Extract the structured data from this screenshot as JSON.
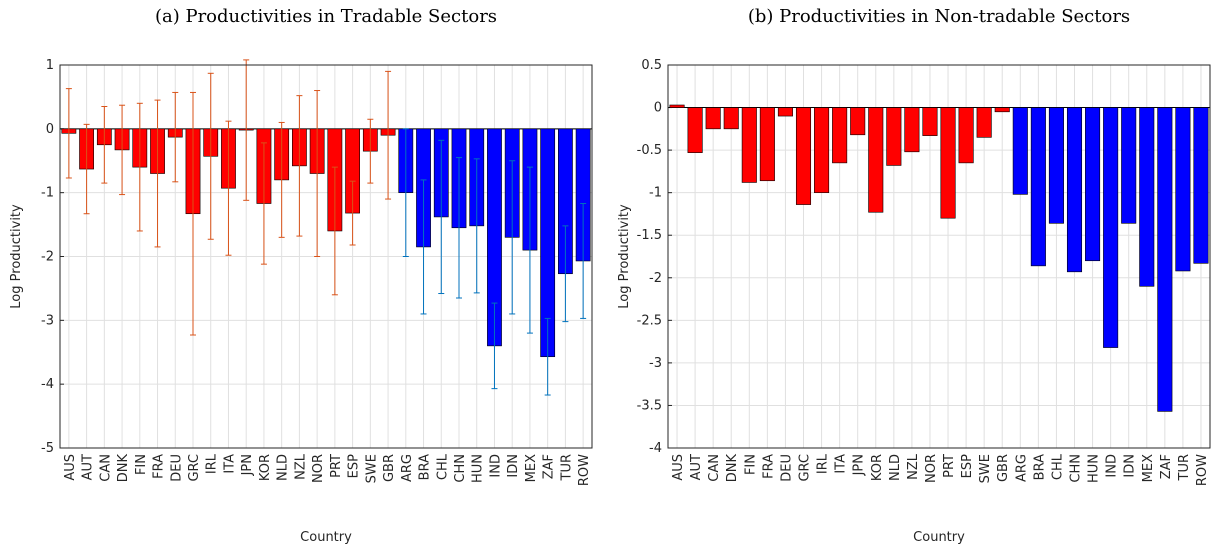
{
  "chart_data": [
    {
      "type": "bar",
      "title": "(a) Productivities in Tradable Sectors",
      "xlabel": "Country",
      "ylabel": "Log Productivity",
      "categories": [
        "AUS",
        "AUT",
        "CAN",
        "DNK",
        "FIN",
        "FRA",
        "DEU",
        "GRC",
        "IRL",
        "ITA",
        "JPN",
        "KOR",
        "NLD",
        "NZL",
        "NOR",
        "PRT",
        "ESP",
        "SWE",
        "GBR",
        "ARG",
        "BRA",
        "CHL",
        "CHN",
        "HUN",
        "IND",
        "IDN",
        "MEX",
        "ZAF",
        "TUR",
        "ROW"
      ],
      "values": [
        -0.07,
        -0.63,
        -0.25,
        -0.33,
        -0.6,
        -0.7,
        -0.13,
        -1.33,
        -0.43,
        -0.93,
        -0.02,
        -1.17,
        -0.8,
        -0.58,
        -0.7,
        -1.6,
        -1.32,
        -0.35,
        -0.1,
        -1.0,
        -1.85,
        -1.38,
        -1.55,
        -1.52,
        -3.4,
        -1.7,
        -1.9,
        -3.57,
        -2.27,
        -2.07
      ],
      "errors": [
        0.7,
        0.7,
        0.6,
        0.7,
        1.0,
        1.15,
        0.7,
        1.9,
        1.3,
        1.05,
        1.1,
        0.95,
        0.9,
        1.1,
        1.3,
        1.0,
        0.5,
        0.5,
        1.0,
        1.0,
        1.05,
        1.2,
        1.1,
        1.05,
        0.67,
        1.2,
        1.3,
        0.6,
        0.75,
        0.9
      ],
      "colors": [
        "#ff0000",
        "#ff0000",
        "#ff0000",
        "#ff0000",
        "#ff0000",
        "#ff0000",
        "#ff0000",
        "#ff0000",
        "#ff0000",
        "#ff0000",
        "#ff0000",
        "#ff0000",
        "#ff0000",
        "#ff0000",
        "#ff0000",
        "#ff0000",
        "#ff0000",
        "#ff0000",
        "#ff0000",
        "#0000ff",
        "#0000ff",
        "#0000ff",
        "#0000ff",
        "#0000ff",
        "#0000ff",
        "#0000ff",
        "#0000ff",
        "#0000ff",
        "#0000ff",
        "#0000ff"
      ],
      "error_colors": [
        "#d95319",
        "#d95319",
        "#d95319",
        "#d95319",
        "#d95319",
        "#d95319",
        "#d95319",
        "#d95319",
        "#d95319",
        "#d95319",
        "#d95319",
        "#d95319",
        "#d95319",
        "#d95319",
        "#d95319",
        "#d95319",
        "#d95319",
        "#d95319",
        "#d95319",
        "#0072bd",
        "#0072bd",
        "#0072bd",
        "#0072bd",
        "#0072bd",
        "#0072bd",
        "#0072bd",
        "#0072bd",
        "#0072bd",
        "#0072bd",
        "#0072bd"
      ],
      "ylim": [
        -5,
        1
      ],
      "yticks": [
        -5,
        -4,
        -3,
        -2,
        -1,
        0,
        1
      ],
      "grid": true
    },
    {
      "type": "bar",
      "title": "(b) Productivities in Non-tradable Sectors",
      "xlabel": "Country",
      "ylabel": "Log Productivity",
      "categories": [
        "AUS",
        "AUT",
        "CAN",
        "DNK",
        "FIN",
        "FRA",
        "DEU",
        "GRC",
        "IRL",
        "ITA",
        "JPN",
        "KOR",
        "NLD",
        "NZL",
        "NOR",
        "PRT",
        "ESP",
        "SWE",
        "GBR",
        "ARG",
        "BRA",
        "CHL",
        "CHN",
        "HUN",
        "IND",
        "IDN",
        "MEX",
        "ZAF",
        "TUR",
        "ROW"
      ],
      "values": [
        0.03,
        -0.53,
        -0.25,
        -0.25,
        -0.88,
        -0.86,
        -0.1,
        -1.14,
        -1.0,
        -0.65,
        -0.32,
        -1.23,
        -0.68,
        -0.52,
        -0.33,
        -1.3,
        -0.65,
        -0.35,
        -0.05,
        -1.02,
        -1.86,
        -1.36,
        -1.93,
        -1.8,
        -2.82,
        -1.36,
        -2.1,
        -3.57,
        -1.92,
        -1.83
      ],
      "colors": [
        "#ff0000",
        "#ff0000",
        "#ff0000",
        "#ff0000",
        "#ff0000",
        "#ff0000",
        "#ff0000",
        "#ff0000",
        "#ff0000",
        "#ff0000",
        "#ff0000",
        "#ff0000",
        "#ff0000",
        "#ff0000",
        "#ff0000",
        "#ff0000",
        "#ff0000",
        "#ff0000",
        "#ff0000",
        "#0000ff",
        "#0000ff",
        "#0000ff",
        "#0000ff",
        "#0000ff",
        "#0000ff",
        "#0000ff",
        "#0000ff",
        "#0000ff",
        "#0000ff",
        "#0000ff"
      ],
      "ylim": [
        -4,
        0.5
      ],
      "yticks": [
        -4,
        -3.5,
        -3,
        -2.5,
        -2,
        -1.5,
        -1,
        -0.5,
        0,
        0.5
      ],
      "grid": true
    }
  ]
}
